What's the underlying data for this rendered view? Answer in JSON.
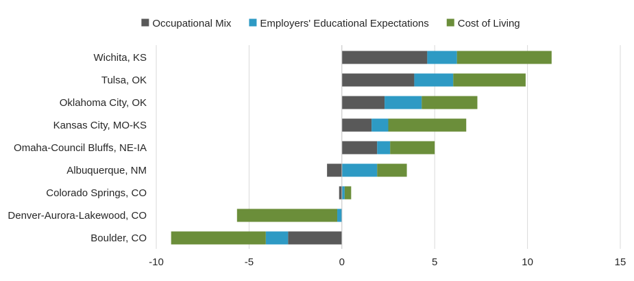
{
  "chart_data": {
    "type": "bar",
    "orientation": "horizontal",
    "stacked": true,
    "categories": [
      "Wichita, KS",
      "Tulsa, OK",
      "Oklahoma City, OK",
      "Kansas City, MO-KS",
      "Omaha-Council Bluffs, NE-IA",
      "Albuquerque, NM",
      "Colorado Springs, CO",
      "Denver-Aurora-Lakewood, CO",
      "Boulder, CO"
    ],
    "series": [
      {
        "name": "Occupational Mix",
        "color": "#595959",
        "values": [
          4.6,
          3.9,
          2.3,
          1.6,
          1.9,
          -0.8,
          -0.15,
          0.0,
          -2.9
        ]
      },
      {
        "name": "Employers' Educational Expectations",
        "color": "#2e9ac4",
        "values": [
          1.6,
          2.1,
          2.0,
          0.9,
          0.7,
          1.9,
          0.15,
          -0.25,
          -1.2
        ]
      },
      {
        "name": "Cost of Living",
        "color": "#6b8e3a",
        "values": [
          5.1,
          3.9,
          3.0,
          4.2,
          2.4,
          1.6,
          0.35,
          -5.4,
          -5.1
        ]
      }
    ],
    "xlim": [
      -10,
      15
    ],
    "xticks": [
      "-10",
      "-5",
      "0",
      "5",
      "10",
      "15"
    ],
    "grid": true,
    "legend": "top-center"
  }
}
